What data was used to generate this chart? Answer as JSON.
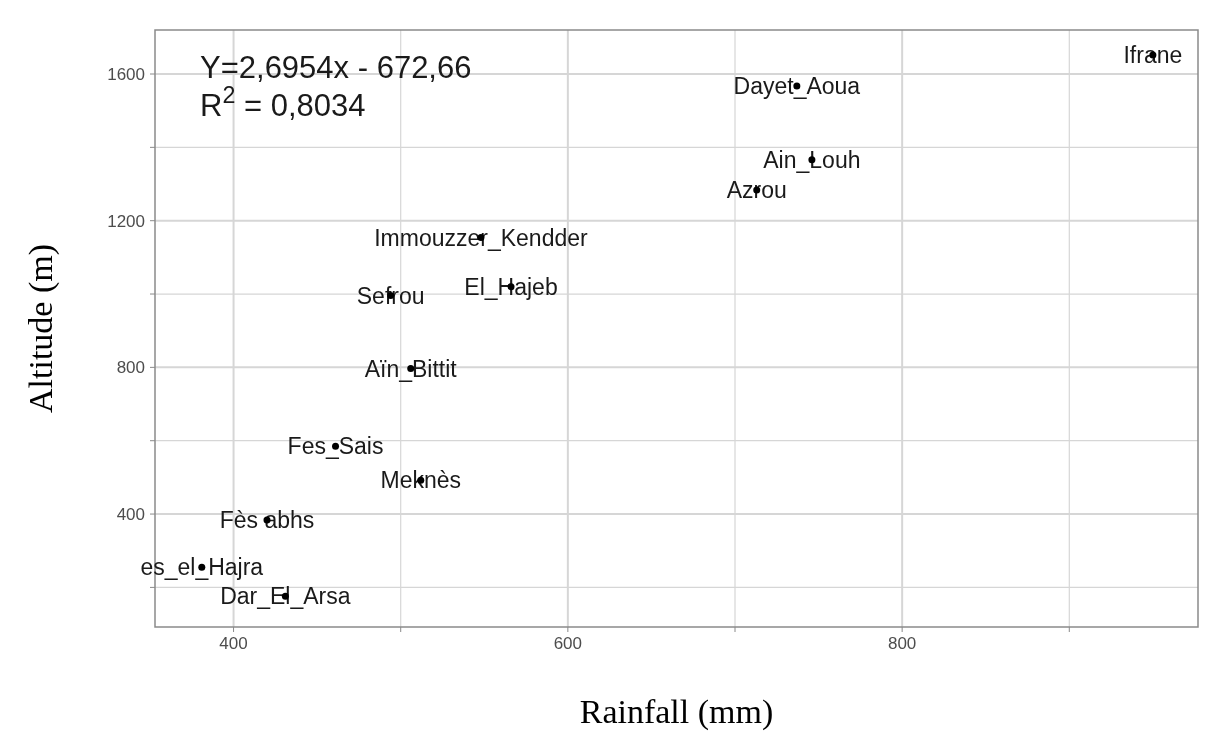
{
  "chart_data": {
    "type": "scatter",
    "xlabel": "Rainfall (mm)",
    "ylabel": "Altitude (m)",
    "x": [
      950,
      737,
      746,
      713,
      548,
      566,
      494,
      506,
      461,
      512,
      420,
      381,
      431
    ],
    "values": [
      1652,
      1567,
      1366,
      1284,
      1154,
      1020,
      996,
      797,
      585,
      492,
      384,
      255,
      176
    ],
    "color": "#000000",
    "marker": "circle",
    "xlim": [
      353,
      977
    ],
    "ylim": [
      92,
      1720
    ],
    "xticks": [
      400,
      {
        "value": 500,
        "label": null
      },
      600,
      {
        "value": 700,
        "label": null
      },
      800,
      {
        "value": 900,
        "label": null
      }
    ],
    "yticks": [
      {
        "value": 200,
        "label": null
      },
      400,
      {
        "value": 600,
        "label": null
      },
      800,
      {
        "value": 1000,
        "label": null
      },
      1200,
      {
        "value": 1400,
        "label": null
      },
      1600
    ],
    "grid": true,
    "annotations": [
      "Y=2,6954x - 672,66",
      "R$^{2}$ = 0,8034",
      {
        "text": "Ifrane",
        "x": 950,
        "y": 1652
      },
      {
        "text": "Dayet_Aoua",
        "x": 737,
        "y": 1567
      },
      {
        "text": "Ain_Louh",
        "x": 746,
        "y": 1366
      },
      {
        "text": "Azrou",
        "x": 713,
        "y": 1284
      },
      {
        "text": "Immouzzer_Kendder",
        "x": 548,
        "y": 1154
      },
      {
        "text": "El_Hajeb",
        "x": 566,
        "y": 1020
      },
      {
        "text": "Sefrou",
        "x": 494,
        "y": 996
      },
      {
        "text": "Aïn_Bittit",
        "x": 506,
        "y": 797
      },
      {
        "text": "Fes_Sais",
        "x": 461,
        "y": 585
      },
      {
        "text": "Meknès",
        "x": 512,
        "y": 492
      },
      {
        "text": "Fès abhs",
        "x": 420,
        "y": 384
      },
      {
        "text": "es_el_Hajra",
        "x": 381,
        "y": 255
      },
      {
        "text": "Dar_El_Arsa",
        "x": 431,
        "y": 176
      }
    ]
  }
}
